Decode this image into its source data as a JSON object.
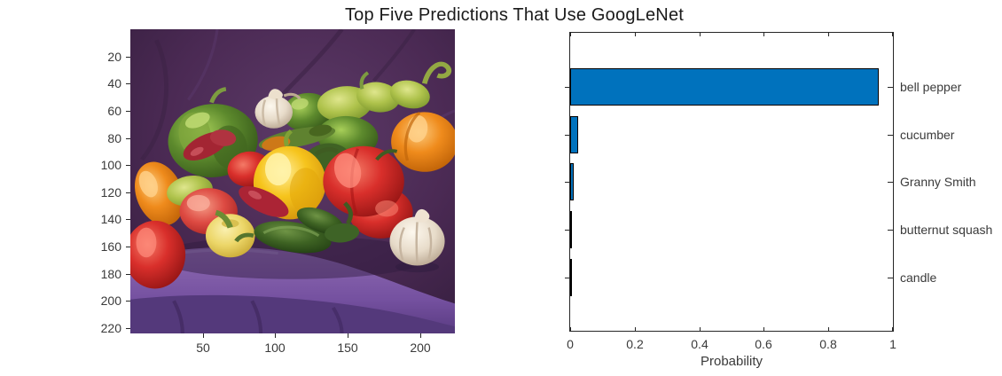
{
  "figure": {
    "title": "Top Five Predictions That Use GoogLeNet"
  },
  "image_panel": {
    "alt": "Still life photo of red, green, yellow and orange bell peppers, chili peppers and garlic bulbs on a purple cloth",
    "y_tick_labels": [
      "20",
      "40",
      "60",
      "80",
      "100",
      "120",
      "140",
      "160",
      "180",
      "200",
      "220"
    ],
    "x_tick_labels": [
      "50",
      "100",
      "150",
      "200"
    ],
    "data_width": 224,
    "data_height": 224
  },
  "chart_data": {
    "type": "bar",
    "orientation": "horizontal",
    "title": "Top Five Predictions That Use GoogLeNet",
    "categories": [
      "bell pepper",
      "cucumber",
      "Granny Smith",
      "butternut squash",
      "candle"
    ],
    "values": [
      0.955,
      0.025,
      0.012,
      0.003,
      0.002
    ],
    "xlabel": "Probability",
    "xlim": [
      0,
      1
    ],
    "x_tick_labels": [
      "0",
      "0.2",
      "0.4",
      "0.6",
      "0.8",
      "1"
    ],
    "x_tick_values": [
      0,
      0.2,
      0.4,
      0.6,
      0.8,
      1
    ],
    "legend": "none",
    "grid": false
  },
  "colors": {
    "bar_fill": "#0072BD",
    "bar_edge": "#000000",
    "axis": "#262626",
    "tick_label": "#3a3a3a",
    "background": "#ffffff"
  }
}
